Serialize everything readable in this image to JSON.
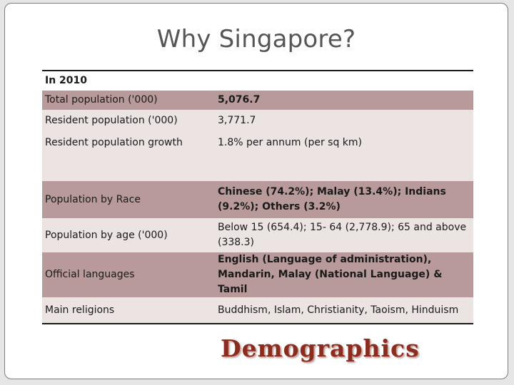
{
  "slide": {
    "title": "Why Singapore?",
    "table": {
      "header": "In 2010",
      "rows": [
        {
          "label": "Total population ('000)",
          "value": "5,076.7",
          "bold": true
        },
        {
          "label": "Resident population ('000)",
          "value": "3,771.7",
          "bold": false
        },
        {
          "label": "Resident population growth",
          "value": "1.8% per annum (per sq km)",
          "bold": false
        },
        {
          "label": "Population by Race",
          "value": "Chinese (74.2%); Malay (13.4%); Indians (9.2%); Others (3.2%)",
          "bold": true
        },
        {
          "label": "Population by age ('000)",
          "value": "Below 15 (654.4); 15- 64 (2,778.9); 65 and above (338.3)",
          "bold": false
        },
        {
          "label": "Official languages",
          "value": "English (Language of administration), Mandarin, Malay (National Language) & Tamil",
          "bold": true
        },
        {
          "label": "Main religions",
          "value": "Buddhism, Islam, Christianity, Taoism, Hinduism",
          "bold": false
        }
      ]
    },
    "caption": "Demographics"
  },
  "colors": {
    "row_dark": "#b89a9a",
    "row_light": "#ece3e3",
    "caption": "#8a2c1f",
    "title": "#555555"
  }
}
